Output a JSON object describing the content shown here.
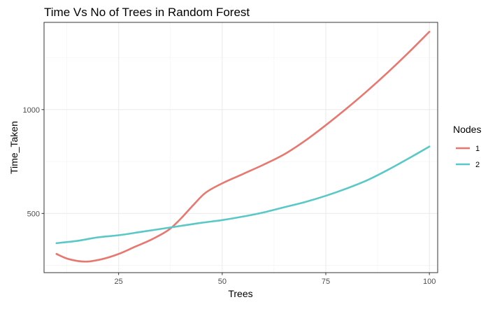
{
  "chart_data": {
    "type": "line",
    "title": "Time Vs No of Trees in Random Forest",
    "xlabel": "Trees",
    "ylabel": "Time_Taken",
    "xlim": [
      7,
      102
    ],
    "ylim": [
      215,
      1420
    ],
    "xticks": [
      25,
      50,
      75,
      100
    ],
    "yticks": [
      500,
      1000
    ],
    "grid": true,
    "legend": {
      "title": "Nodes",
      "position": "right"
    },
    "series": [
      {
        "name": "1",
        "color": "#E8776F",
        "x": [
          10,
          13,
          17,
          21,
          25,
          29,
          33,
          37,
          40,
          43,
          46,
          50,
          55,
          60,
          65,
          70,
          75,
          80,
          85,
          90,
          95,
          100
        ],
        "y": [
          305,
          280,
          268,
          280,
          305,
          340,
          375,
          420,
          475,
          540,
          600,
          645,
          690,
          735,
          785,
          850,
          925,
          1005,
          1090,
          1180,
          1275,
          1375
        ]
      },
      {
        "name": "2",
        "color": "#5BC8C8",
        "x": [
          10,
          15,
          20,
          25,
          30,
          35,
          40,
          45,
          50,
          55,
          60,
          65,
          70,
          75,
          80,
          85,
          90,
          95,
          100
        ],
        "y": [
          357,
          368,
          385,
          395,
          410,
          425,
          440,
          455,
          468,
          485,
          505,
          530,
          555,
          585,
          620,
          660,
          710,
          765,
          822
        ]
      }
    ]
  }
}
